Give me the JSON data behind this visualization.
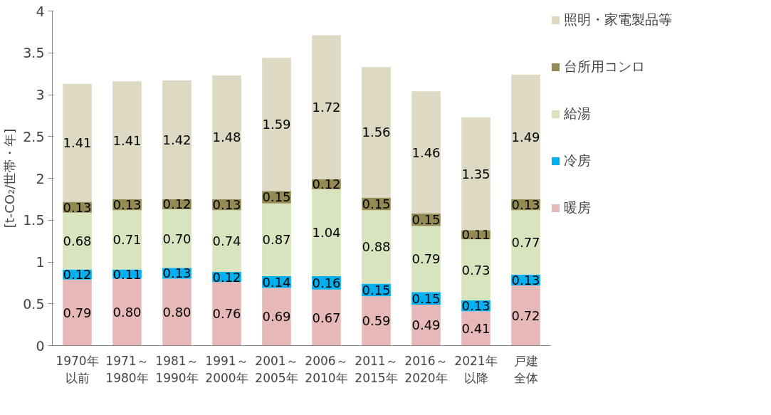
{
  "chart_data": {
    "type": "bar",
    "stacked": true,
    "ylabel": "[t-CO₂/世帯・年]",
    "categories": [
      "1970年以前",
      "1971～1980年",
      "1981～1990年",
      "1991～2000年",
      "2001～2005年",
      "2006～2010年",
      "2011～2015年",
      "2016～2020年",
      "2021年以降",
      "戸建全体"
    ],
    "series": [
      {
        "name": "暖房",
        "color": "#e6b9b8",
        "values": [
          0.79,
          0.8,
          0.8,
          0.76,
          0.69,
          0.67,
          0.59,
          0.49,
          0.41,
          0.72
        ],
        "value_labels": [
          "0.79",
          "0.80",
          "0.80",
          "0.76",
          "0.69",
          "0.67",
          "0.59",
          "0.49",
          "0.41",
          "0.72"
        ]
      },
      {
        "name": "冷房",
        "color": "#00b0f0",
        "values": [
          0.12,
          0.11,
          0.13,
          0.12,
          0.14,
          0.16,
          0.15,
          0.15,
          0.13,
          0.13
        ],
        "value_labels": [
          "0.12",
          "0.11",
          "0.13",
          "0.12",
          "0.14",
          "0.16",
          "0.15",
          "0.15",
          "0.13",
          "0.13"
        ]
      },
      {
        "name": "給湯",
        "color": "#d7e4bd",
        "values": [
          0.68,
          0.71,
          0.7,
          0.74,
          0.87,
          1.04,
          0.88,
          0.79,
          0.73,
          0.77
        ],
        "value_labels": [
          "0.68",
          "0.71",
          "0.70",
          "0.74",
          "0.87",
          "1.04",
          "0.88",
          "0.79",
          "0.73",
          "0.77"
        ]
      },
      {
        "name": "台所用コンロ",
        "color": "#948a54",
        "values": [
          0.13,
          0.13,
          0.12,
          0.13,
          0.15,
          0.12,
          0.15,
          0.15,
          0.11,
          0.13
        ],
        "value_labels": [
          "0.13",
          "0.13",
          "0.12",
          "0.13",
          "0.15",
          "0.12",
          "0.15",
          "0.15",
          "0.11",
          "0.13"
        ]
      },
      {
        "name": "照明・家電製品等",
        "color": "#ddd9c3",
        "values": [
          1.41,
          1.41,
          1.42,
          1.48,
          1.59,
          1.72,
          1.56,
          1.46,
          1.35,
          1.49
        ],
        "value_labels": [
          "1.41",
          "1.41",
          "1.42",
          "1.48",
          "1.59",
          "1.72",
          "1.56",
          "1.46",
          "1.35",
          "1.49"
        ]
      }
    ],
    "ylim": [
      0,
      4
    ],
    "yticks": [
      0,
      0.5,
      1,
      1.5,
      2,
      2.5,
      3,
      3.5,
      4
    ],
    "grid": false,
    "legend": "right"
  }
}
